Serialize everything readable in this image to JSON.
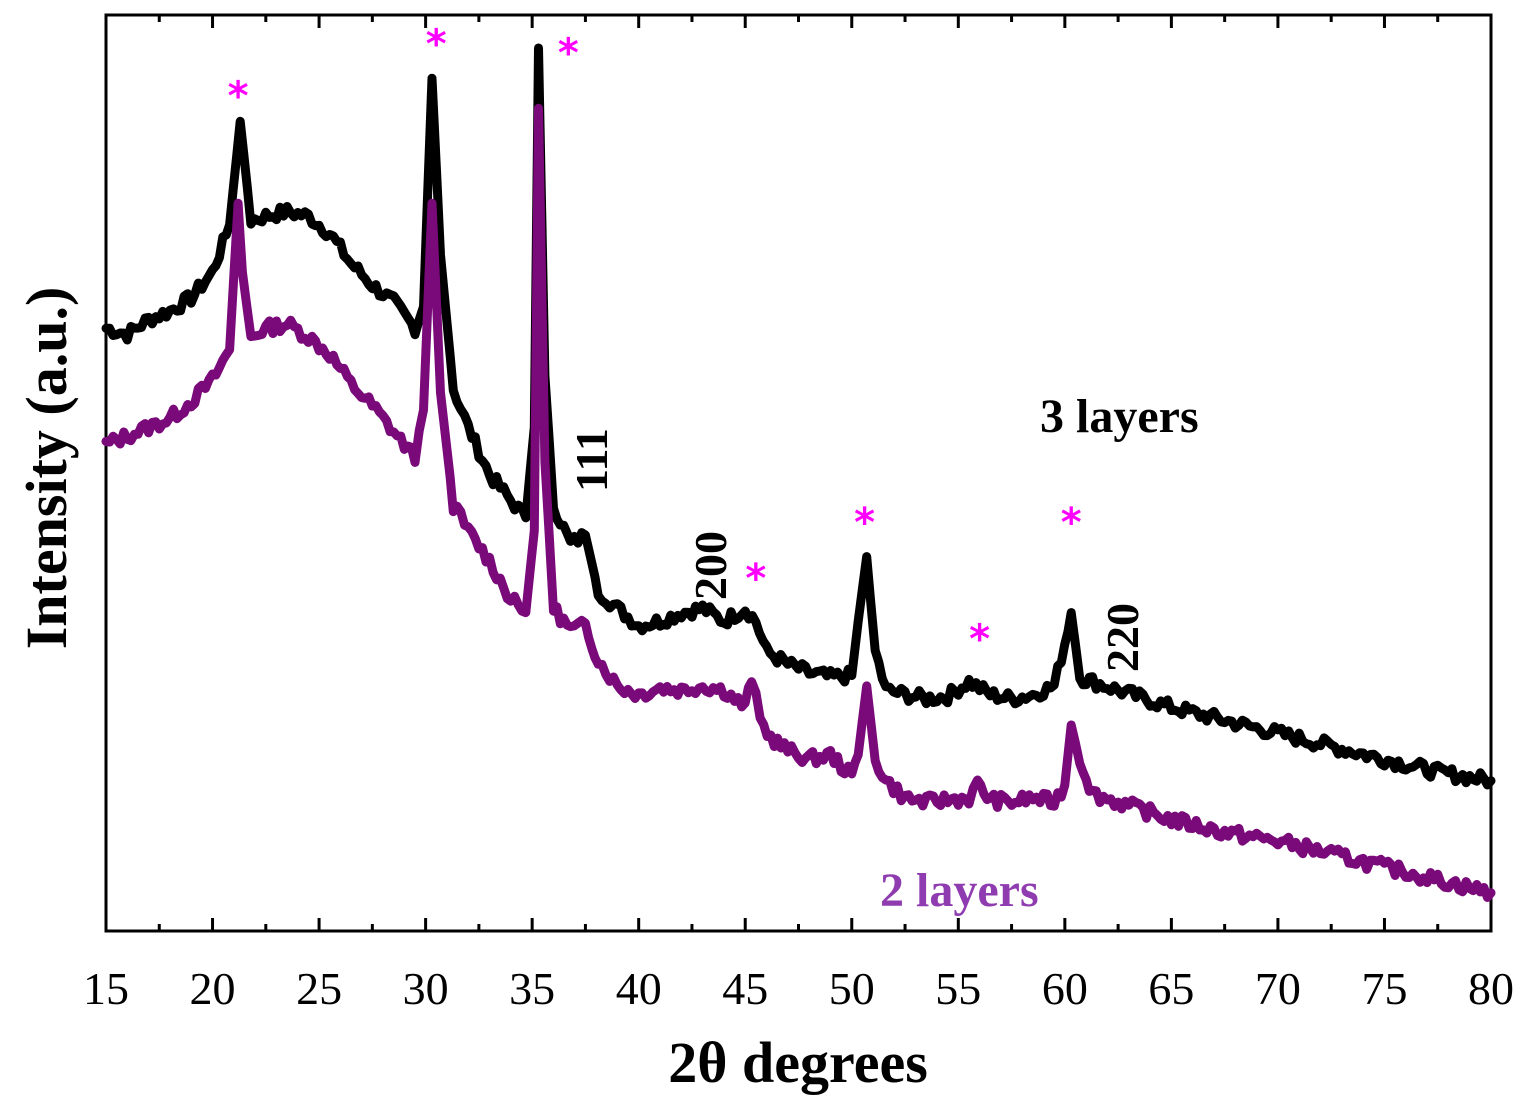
{
  "chart_data": {
    "type": "line",
    "title": "",
    "xlabel": "2θ degrees",
    "ylabel": "Intensity (a.u.)",
    "xlim": [
      15,
      80
    ],
    "ylim": [
      0,
      100
    ],
    "x_ticks": [
      "15",
      "20",
      "25",
      "30",
      "35",
      "40",
      "45",
      "50",
      "55",
      "60",
      "65",
      "70",
      "75",
      "80"
    ],
    "y_ticks_shown": false,
    "grid": false,
    "colors": {
      "three_layers": "#000000",
      "two_layers": "#7a0a7a",
      "two_layers_label": "#8e3cb0",
      "star": "#ff00ff"
    },
    "series": [
      {
        "name": "3 layers",
        "x": [
          15,
          16,
          17,
          18,
          19,
          20,
          20.8,
          21.3,
          21.8,
          22.5,
          23.5,
          24.5,
          25.5,
          26.5,
          27.5,
          28.5,
          29.5,
          29.9,
          30.3,
          30.7,
          31.3,
          32,
          33,
          34,
          34.7,
          35.1,
          35.3,
          35.6,
          36,
          36.8,
          37.5,
          38.1,
          39,
          40,
          41,
          42,
          43,
          44,
          45,
          45.5,
          46,
          47,
          48,
          49,
          50,
          50.3,
          50.7,
          51.1,
          51.6,
          52.5,
          53.5,
          54.5,
          55.5,
          56.5,
          57.5,
          58.5,
          59.5,
          60,
          60.3,
          60.7,
          61.3,
          62.5,
          65,
          67.5,
          70,
          72.5,
          75,
          77.5,
          80
        ],
        "values": [
          67.5,
          66.8,
          68.5,
          69.5,
          71,
          74,
          79.5,
          91.5,
          80,
          80.5,
          81,
          80.5,
          78.5,
          75,
          72.5,
          70.5,
          67.5,
          70,
          96.5,
          76,
          60.5,
          56,
          50.5,
          47.5,
          45.5,
          56,
          100,
          62,
          47,
          42.5,
          43.5,
          37,
          35,
          33,
          33.5,
          34.5,
          35,
          33.5,
          35,
          33.5,
          30,
          28.5,
          27.5,
          27,
          27.2,
          33.5,
          41,
          30,
          25.5,
          25,
          24.5,
          24.8,
          26.5,
          25,
          24.5,
          25,
          26,
          31,
          34.5,
          27,
          26.5,
          25.5,
          23.5,
          22,
          20.5,
          19,
          17.5,
          16,
          15
        ]
      },
      {
        "name": "2 layers",
        "x": [
          15,
          16,
          17,
          18,
          19,
          20,
          20.8,
          21.2,
          21.4,
          21.8,
          22.5,
          23.5,
          24.5,
          25.5,
          26.5,
          27.5,
          28.5,
          29.5,
          29.9,
          30.3,
          30.7,
          31.3,
          32,
          33,
          34,
          34.7,
          35.1,
          35.3,
          35.6,
          36,
          36.8,
          37.5,
          38.1,
          39,
          40,
          41,
          42,
          43,
          44,
          45,
          45.3,
          45.7,
          46.2,
          47,
          48,
          49,
          50,
          50.3,
          50.7,
          51.1,
          51.6,
          52.5,
          53.5,
          54.5,
          55.5,
          55.9,
          56.5,
          57.5,
          58.5,
          59.5,
          60,
          60.3,
          60.7,
          61.3,
          62.5,
          65,
          67.5,
          70,
          72.5,
          75,
          77.5,
          80
        ],
        "values": [
          54,
          55,
          56,
          57,
          59,
          61.5,
          65,
          82,
          74,
          66.5,
          67.5,
          68,
          66.5,
          64.5,
          61,
          58.5,
          55.5,
          52.5,
          58,
          82,
          60,
          47,
          44,
          40.5,
          36,
          34.5,
          44,
          93,
          52,
          35,
          32.5,
          33,
          29,
          26,
          25,
          25.8,
          25.5,
          26,
          25.5,
          23.5,
          27,
          22,
          20,
          18.5,
          17.5,
          18,
          15.5,
          18,
          26,
          17.5,
          15,
          13,
          12.5,
          12.8,
          13,
          14.5,
          12.8,
          12.5,
          13,
          12.5,
          14.5,
          21.5,
          17.5,
          13.5,
          12.5,
          10.5,
          9,
          8,
          6.5,
          5,
          3.5,
          2
        ]
      }
    ],
    "annotations": {
      "three_layers_label": "3 layers",
      "two_layers_label": "2 layers",
      "hkl_111": "111",
      "hkl_200": "200",
      "hkl_220": "220",
      "star": "*"
    },
    "star_marks": [
      {
        "x": 21.2,
        "value": 94.5
      },
      {
        "x": 30.5,
        "value": 100.5
      },
      {
        "x": 36.7,
        "value": 99.5
      },
      {
        "x": 45.5,
        "value": 38.5
      },
      {
        "x": 50.6,
        "value": 45
      },
      {
        "x": 56,
        "value": 31.5
      },
      {
        "x": 60.3,
        "value": 45
      }
    ]
  }
}
